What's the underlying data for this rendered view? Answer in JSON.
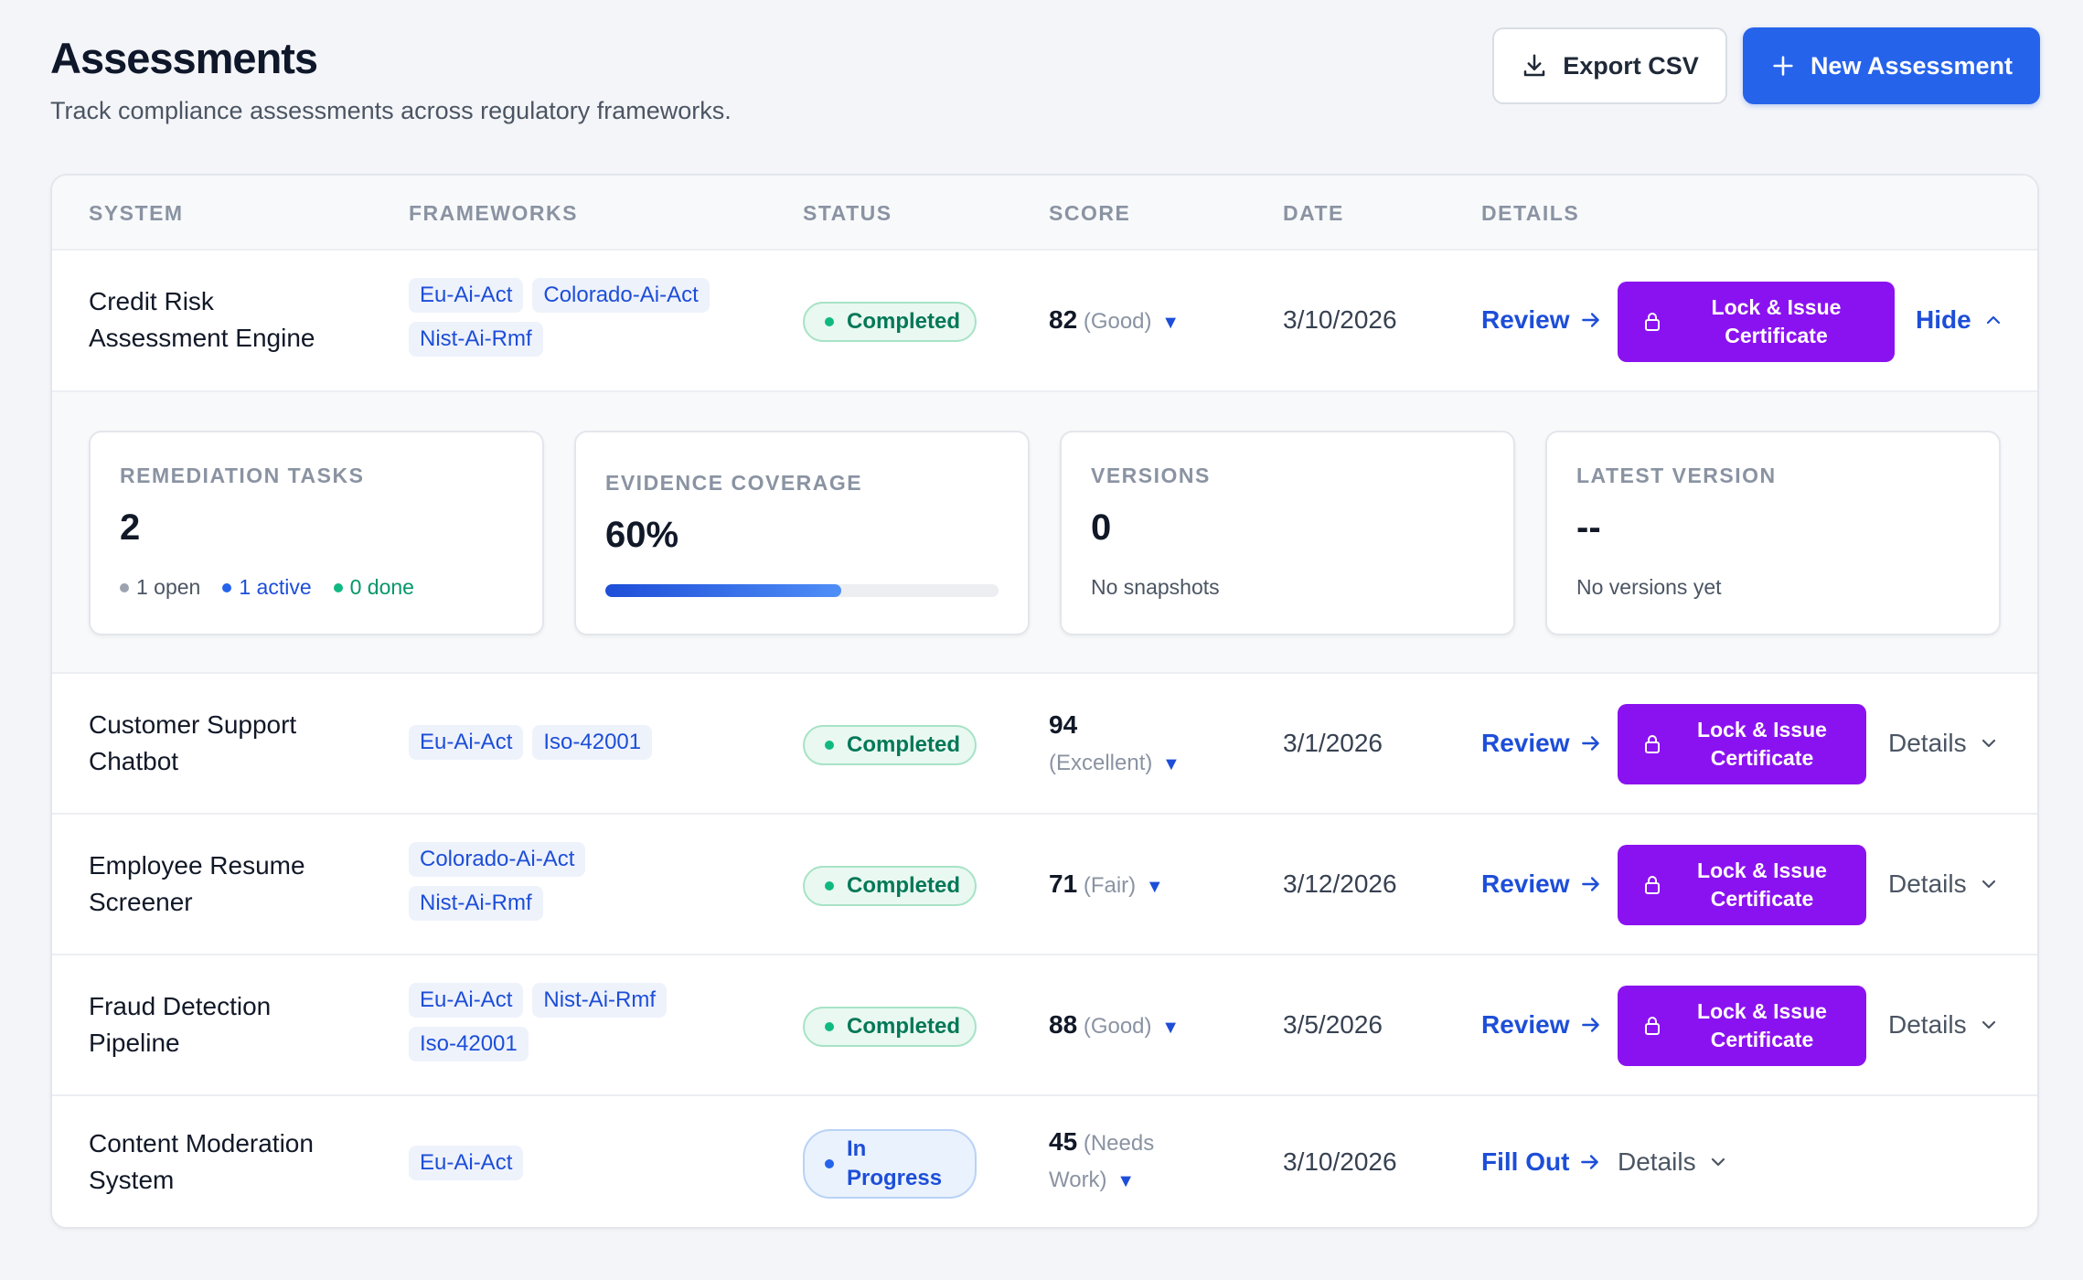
{
  "header": {
    "title": "Assessments",
    "subtitle": "Track compliance assessments across regulatory frameworks."
  },
  "actions": {
    "export_label": "Export CSV",
    "new_label": "New Assessment",
    "accent_color": "#2563eb"
  },
  "table": {
    "columns": [
      "SYSTEM",
      "FRAMEWORKS",
      "STATUS",
      "SCORE",
      "DATE",
      "DETAILS"
    ],
    "review_label": "Review",
    "fill_out_label": "Fill Out",
    "lock_label_line1": "Lock & Issue",
    "lock_label_line2": "Certificate",
    "details_label": "Details",
    "hide_label": "Hide",
    "lock_color": "#8b12f0",
    "rows": [
      {
        "system_line1": "Credit Risk",
        "system_line2": "Assessment Engine",
        "frameworks": [
          "Eu-Ai-Act",
          "Colorado-Ai-Act",
          "Nist-Ai-Rmf"
        ],
        "status": "Completed",
        "score": "82",
        "score_label": "(Good)",
        "date": "3/10/2026"
      },
      {
        "system_line1": "Customer Support",
        "system_line2": "Chatbot",
        "frameworks": [
          "Eu-Ai-Act",
          "Iso-42001"
        ],
        "status": "Completed",
        "score": "94",
        "score_label": "(Excellent)",
        "date": "3/1/2026"
      },
      {
        "system_line1": "Employee Resume",
        "system_line2": "Screener",
        "frameworks": [
          "Colorado-Ai-Act",
          "Nist-Ai-Rmf"
        ],
        "status": "Completed",
        "score": "71",
        "score_label": "(Fair)",
        "date": "3/12/2026"
      },
      {
        "system_line1": "Fraud Detection",
        "system_line2": "Pipeline",
        "frameworks": [
          "Eu-Ai-Act",
          "Nist-Ai-Rmf",
          "Iso-42001"
        ],
        "status": "Completed",
        "score": "88",
        "score_label": "(Good)",
        "date": "3/5/2026"
      },
      {
        "system_line1": "Content Moderation",
        "system_line2": "System",
        "frameworks": [
          "Eu-Ai-Act"
        ],
        "status_line1": "In",
        "status_line2": "Progress",
        "score": "45",
        "score_label_line1": "(Needs",
        "score_label_line2": "Work)",
        "date": "3/10/2026"
      }
    ]
  },
  "expanded": {
    "remediation": {
      "label": "REMEDIATION TASKS",
      "value": "2",
      "open": "1 open",
      "active": "1 active",
      "done": "0 done"
    },
    "evidence": {
      "label": "EVIDENCE COVERAGE",
      "value": "60%",
      "progress_percent": 60
    },
    "versions": {
      "label": "VERSIONS",
      "value": "0",
      "sub": "No snapshots"
    },
    "latest": {
      "label": "LATEST VERSION",
      "value": "--",
      "sub": "No versions yet"
    }
  }
}
